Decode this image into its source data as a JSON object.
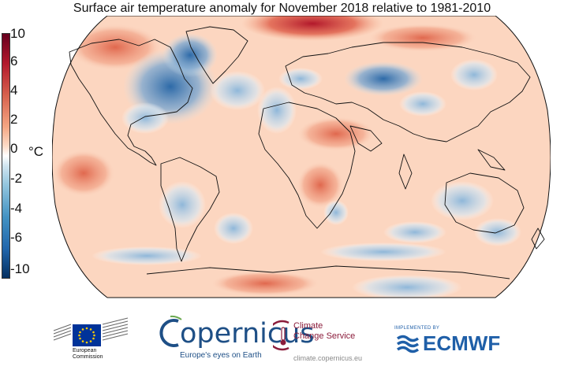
{
  "title": "Surface air temperature anomaly for November 2018 relative to 1981-2010",
  "colorbar": {
    "unit": "°C",
    "ticks": [
      "10",
      "6",
      "4",
      "2",
      "0",
      "-2",
      "-4",
      "-6",
      "-10"
    ],
    "colors": {
      "max": "#67001f",
      "warm": "#d6604d",
      "neutral": "#ffffff",
      "cool": "#4393c3",
      "min": "#053061"
    }
  },
  "map": {
    "projection": "robinson",
    "ocean_tint": "#fcd9c4",
    "land_outline": "#111111",
    "anomaly_regions": [
      {
        "region": "north-america-east",
        "anomaly": -6
      },
      {
        "region": "greenland-west",
        "anomaly": -5
      },
      {
        "region": "europe-west",
        "anomaly": -2
      },
      {
        "region": "siberia",
        "anomaly": -3
      },
      {
        "region": "arctic-ocean",
        "anomaly": 6
      },
      {
        "region": "north-pacific",
        "anomaly": 2
      },
      {
        "region": "africa",
        "anomaly": 2
      },
      {
        "region": "australia-southeast",
        "anomaly": -3
      },
      {
        "region": "southern-ocean",
        "anomaly": -2
      },
      {
        "region": "antarctica",
        "anomaly": 2
      }
    ]
  },
  "logos": {
    "eu": {
      "line1": "European",
      "line2": "Commission"
    },
    "copernicus": {
      "name": "opernicus",
      "tagline": "Europe's eyes on Earth"
    },
    "c3s": {
      "line1": "Climate",
      "line2": "Change Service",
      "url": "climate.copernicus.eu"
    },
    "ecmwf": {
      "implemented_by": "IMPLEMENTED BY",
      "name": "ECMWF"
    }
  }
}
